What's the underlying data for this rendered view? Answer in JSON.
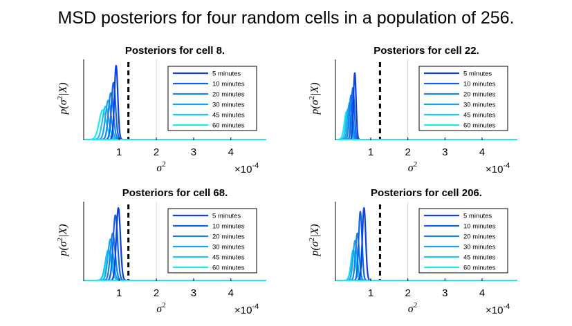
{
  "figure_title": "MSD posteriors for four random cells in a population of 256.",
  "colors": {
    "5 minutes": "#0b3fe0",
    "10 minutes": "#0f63ea",
    "20 minutes": "#1583ea",
    "30 minutes": "#1aa3ea",
    "45 minutes": "#1cc6ee",
    "60 minutes": "#1ee8f2",
    "threshold_line": "#000000",
    "baseline": "#24e6f0"
  },
  "chart_data": [
    {
      "type": "line",
      "title": "Posteriors for cell 8.",
      "xlabel": "σ²",
      "ylabel": "p(σ²|X)",
      "x_scale_label": "×10⁻⁴",
      "xticks": [
        "1",
        "2",
        "3",
        "4"
      ],
      "xlim": [
        0.05,
        4.95
      ],
      "grid_x": [
        2
      ],
      "threshold": 1.25,
      "legend_position": "top-right",
      "series": [
        {
          "name": "5 minutes",
          "mean": 0.92,
          "sd": 0.045,
          "peak": 1.0
        },
        {
          "name": "10 minutes",
          "mean": 0.85,
          "sd": 0.055,
          "peak": 0.77
        },
        {
          "name": "20 minutes",
          "mean": 0.78,
          "sd": 0.065,
          "peak": 0.63
        },
        {
          "name": "30 minutes",
          "mean": 0.71,
          "sd": 0.075,
          "peak": 0.53
        },
        {
          "name": "45 minutes",
          "mean": 0.64,
          "sd": 0.085,
          "peak": 0.45
        },
        {
          "name": "60 minutes",
          "mean": 0.56,
          "sd": 0.095,
          "peak": 0.4
        }
      ]
    },
    {
      "type": "line",
      "title": "Posteriors for cell 22.",
      "xlabel": "σ²",
      "ylabel": "p(σ²|X)",
      "x_scale_label": "×10⁻⁴",
      "xticks": [
        "1",
        "2",
        "3",
        "4"
      ],
      "xlim": [
        0.05,
        4.95
      ],
      "grid_x": [
        2
      ],
      "threshold": 1.25,
      "legend_position": "top-right",
      "series": [
        {
          "name": "5 minutes",
          "mean": 0.57,
          "sd": 0.035,
          "peak": 0.9
        },
        {
          "name": "10 minutes",
          "mean": 0.52,
          "sd": 0.04,
          "peak": 0.7
        },
        {
          "name": "20 minutes",
          "mean": 0.47,
          "sd": 0.045,
          "peak": 0.6
        },
        {
          "name": "30 minutes",
          "mean": 0.43,
          "sd": 0.05,
          "peak": 0.5
        },
        {
          "name": "45 minutes",
          "mean": 0.39,
          "sd": 0.055,
          "peak": 0.42
        },
        {
          "name": "60 minutes",
          "mean": 0.35,
          "sd": 0.06,
          "peak": 0.38
        }
      ]
    },
    {
      "type": "line",
      "title": "Posteriors for cell 68.",
      "xlabel": "σ²",
      "ylabel": "p(σ²|X)",
      "x_scale_label": "×10⁻⁴",
      "xticks": [
        "1",
        "2",
        "3",
        "4"
      ],
      "xlim": [
        0.05,
        4.95
      ],
      "grid_x": [
        2
      ],
      "threshold": 1.25,
      "legend_position": "top-right",
      "series": [
        {
          "name": "5 minutes",
          "mean": 0.98,
          "sd": 0.055,
          "peak": 1.0
        },
        {
          "name": "10 minutes",
          "mean": 0.9,
          "sd": 0.06,
          "peak": 0.9
        },
        {
          "name": "20 minutes",
          "mean": 0.83,
          "sd": 0.065,
          "peak": 0.65
        },
        {
          "name": "30 minutes",
          "mean": 0.77,
          "sd": 0.07,
          "peak": 0.57
        },
        {
          "name": "45 minutes",
          "mean": 0.71,
          "sd": 0.08,
          "peak": 0.42
        },
        {
          "name": "60 minutes",
          "mean": 0.74,
          "sd": 0.09,
          "peak": 0.38
        }
      ]
    },
    {
      "type": "line",
      "title": "Posteriors for cell 206.",
      "xlabel": "σ²",
      "ylabel": "p(σ²|X)",
      "x_scale_label": "×10⁻⁴",
      "xticks": [
        "1",
        "2",
        "3",
        "4"
      ],
      "xlim": [
        0.05,
        4.95
      ],
      "grid_x": [
        2
      ],
      "threshold": 1.25,
      "legend_position": "top-right",
      "series": [
        {
          "name": "5 minutes",
          "mean": 0.82,
          "sd": 0.045,
          "peak": 1.0
        },
        {
          "name": "10 minutes",
          "mean": 0.72,
          "sd": 0.045,
          "peak": 0.95
        },
        {
          "name": "20 minutes",
          "mean": 0.64,
          "sd": 0.05,
          "peak": 0.65
        },
        {
          "name": "30 minutes",
          "mean": 0.58,
          "sd": 0.055,
          "peak": 0.55
        },
        {
          "name": "45 minutes",
          "mean": 0.53,
          "sd": 0.06,
          "peak": 0.42
        },
        {
          "name": "60 minutes",
          "mean": 0.55,
          "sd": 0.07,
          "peak": 0.38
        }
      ]
    }
  ]
}
